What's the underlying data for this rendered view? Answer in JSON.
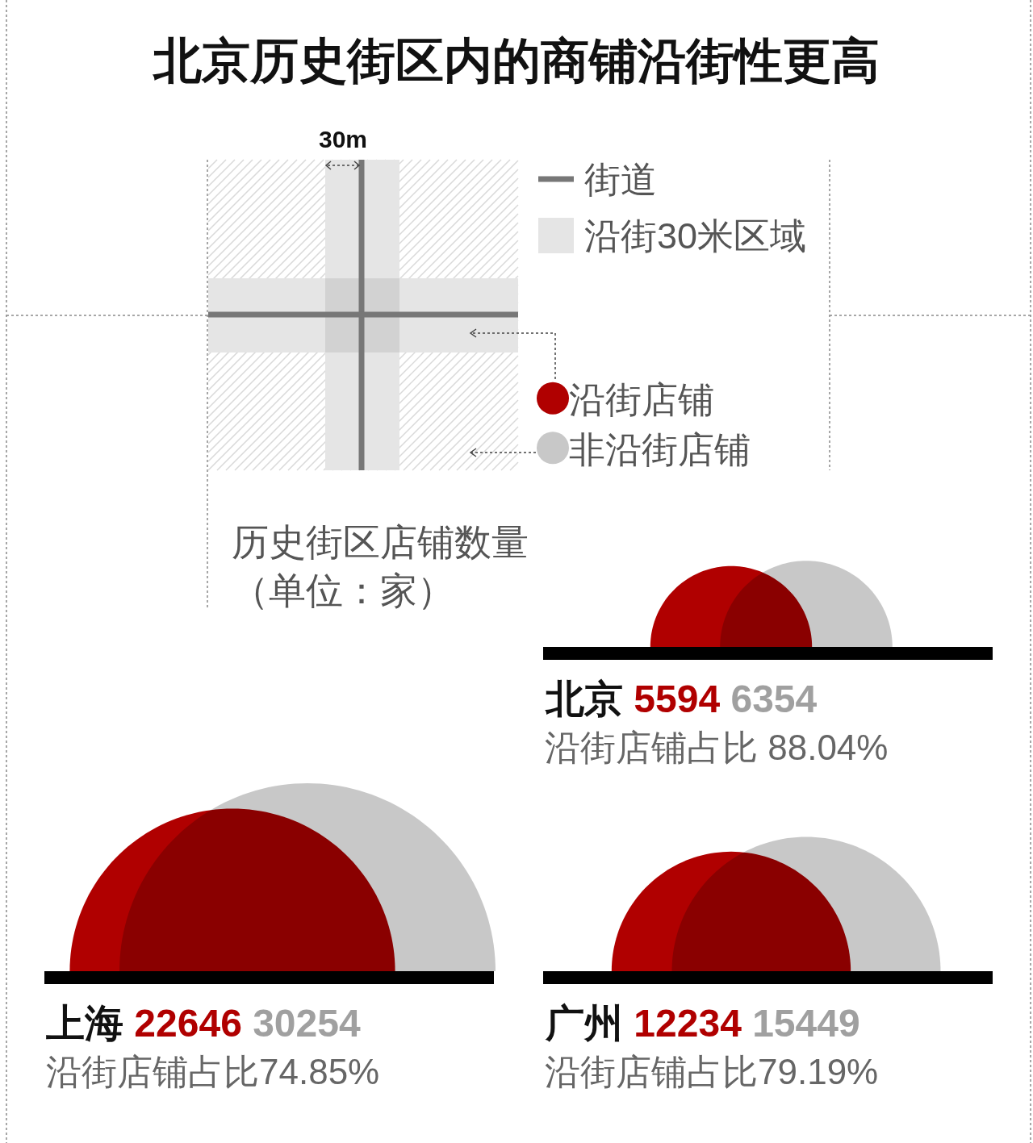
{
  "chart_data": {
    "type": "other",
    "title": "北京历史街区内的商铺沿街性更高",
    "subtitle": "历史街区店铺数量（单位：家）",
    "categories": [
      "北京",
      "上海",
      "广州"
    ],
    "series": [
      {
        "name": "沿街店铺",
        "color": "#b00000",
        "values": [
          5594,
          22646,
          12234
        ]
      },
      {
        "name": "非沿街店铺",
        "color": "#c8c8c8",
        "values": [
          6354,
          30254,
          15449
        ]
      }
    ],
    "data_labels": true,
    "legend": "top right",
    "annotations": [
      "30m",
      "街道",
      "沿街30米区域",
      "沿街店铺占比 88.04%",
      "沿街店铺占比74.85%",
      "沿街店铺占比79.19%"
    ]
  }
}
